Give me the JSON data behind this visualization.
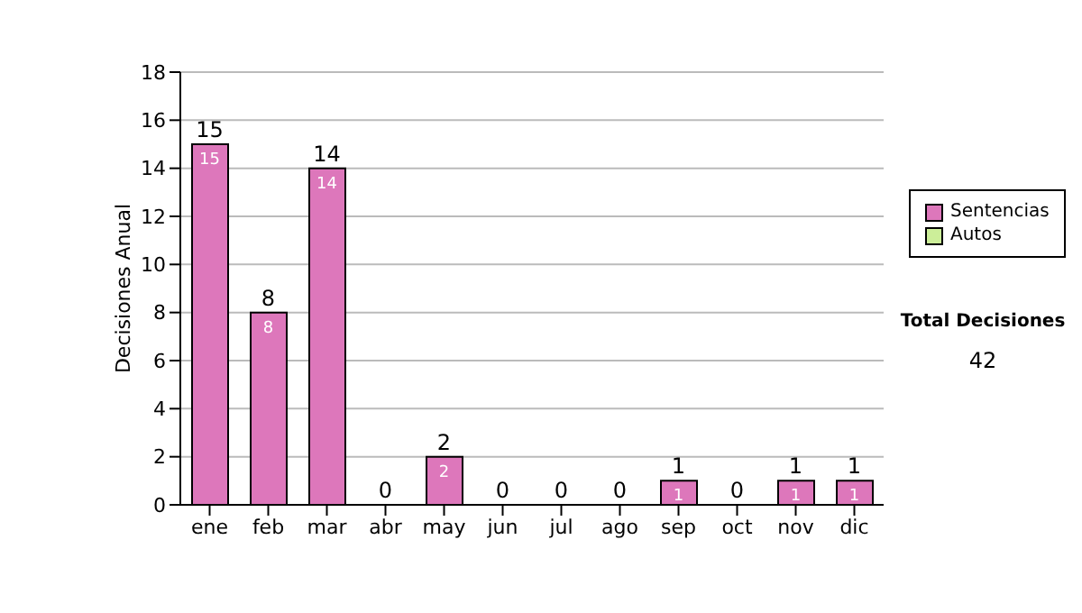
{
  "chart_data": {
    "type": "bar",
    "stacked": true,
    "ylabel": "Decisiones Anual",
    "categories": [
      "ene",
      "feb",
      "mar",
      "abr",
      "may",
      "jun",
      "jul",
      "ago",
      "sep",
      "oct",
      "nov",
      "dic"
    ],
    "series": [
      {
        "name": "Sentencias",
        "color": "#dd77bb",
        "values": [
          15,
          8,
          14,
          0,
          2,
          0,
          0,
          0,
          1,
          0,
          1,
          1
        ],
        "value_labels": [
          "15",
          "8",
          "14",
          null,
          "2",
          null,
          null,
          null,
          "1",
          null,
          "1",
          "1"
        ]
      },
      {
        "name": "Autos",
        "color": "#ccee99",
        "values": [
          0,
          0,
          0,
          0,
          0,
          0,
          0,
          0,
          0,
          0,
          0,
          0
        ]
      }
    ],
    "totals": [
      "15",
      "8",
      "14",
      "0",
      "2",
      "0",
      "0",
      "0",
      "1",
      "0",
      "1",
      "1"
    ],
    "ylim": [
      0,
      18
    ],
    "yticks": [
      0,
      2,
      4,
      6,
      8,
      10,
      12,
      14,
      16,
      18
    ],
    "grid": "y",
    "legend": "right",
    "annotations": [
      "Total Decisiones",
      "42"
    ]
  }
}
